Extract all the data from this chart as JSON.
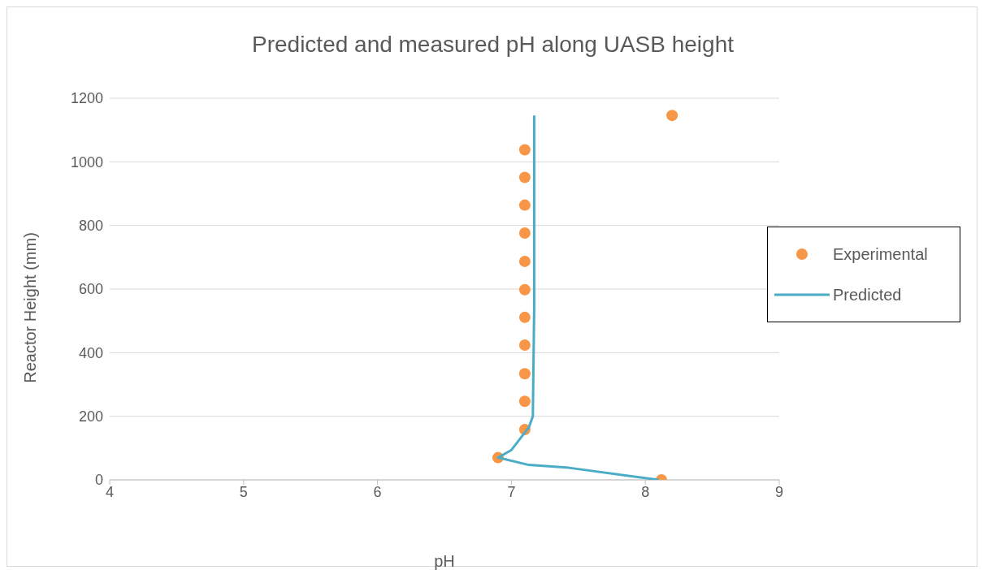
{
  "chart_data": {
    "type": "scatter",
    "title": "Predicted and measured pH along UASB height",
    "xlabel": "pH",
    "ylabel": "Reactor Height (mm)",
    "xlim": [
      4,
      9
    ],
    "xticks": [
      4,
      5,
      6,
      7,
      8,
      9
    ],
    "ylim": [
      0,
      1200
    ],
    "yticks": [
      0,
      200,
      400,
      600,
      800,
      1000,
      1200
    ],
    "grid": "y",
    "legend": "right",
    "series": [
      {
        "name": "Experimental",
        "type": "scatter",
        "marker": "circle",
        "color": "#f79646",
        "x": [
          8.12,
          6.9,
          7.1,
          7.1,
          7.1,
          7.1,
          7.1,
          7.1,
          7.1,
          7.1,
          7.1,
          7.1,
          7.1,
          8.2
        ],
        "values": [
          0,
          70,
          158,
          247,
          334,
          424,
          511,
          598,
          687,
          776,
          864,
          951,
          1038,
          1146
        ]
      },
      {
        "name": "Predicted",
        "type": "line",
        "marker": "none",
        "color": "#4bacc6",
        "x": [
          8.1,
          7.43,
          7.13,
          6.9,
          7.0,
          7.13,
          7.16,
          7.17,
          7.17
        ],
        "values": [
          0,
          38,
          47,
          70,
          94,
          165,
          200,
          540,
          1146
        ]
      }
    ]
  }
}
